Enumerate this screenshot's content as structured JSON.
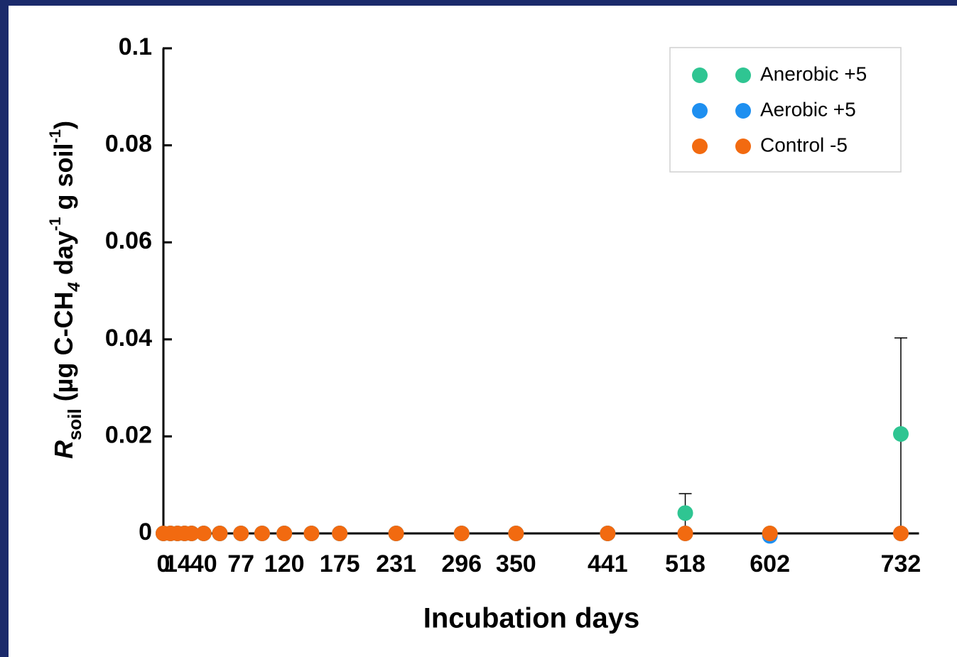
{
  "chart_data": {
    "type": "scatter",
    "ylabel_parts": [
      "R",
      "soil",
      " (µg C-CH",
      "4",
      " day",
      "-1",
      " g soil",
      "-1",
      ")"
    ],
    "xlabel": "Incubation days",
    "x": [
      0,
      7,
      14,
      21,
      28,
      40,
      56,
      77,
      98,
      120,
      147,
      175,
      231,
      296,
      350,
      441,
      518,
      602,
      732
    ],
    "series": [
      {
        "name": "Anerobic +5",
        "color": "#2fc592",
        "values": [
          0,
          0,
          0,
          0,
          0,
          0,
          0,
          0,
          0,
          0,
          0,
          0,
          0,
          0,
          0,
          0,
          0.0042,
          0,
          0.0205
        ],
        "errors": [
          null,
          null,
          null,
          null,
          null,
          null,
          null,
          null,
          null,
          null,
          null,
          null,
          null,
          null,
          null,
          null,
          0.004,
          null,
          0.0198
        ]
      },
      {
        "name": "Aerobic +5",
        "color": "#1e8ff0",
        "values": [
          0,
          0,
          0,
          0,
          0,
          0,
          0,
          0,
          0,
          0,
          0,
          0,
          0,
          0,
          0,
          0,
          0,
          -0.0005,
          0
        ]
      },
      {
        "name": "Control -5",
        "color": "#f26a10",
        "values": [
          0,
          0,
          0,
          0,
          0,
          0,
          0,
          0,
          0,
          0,
          0,
          0,
          0,
          0,
          0,
          0,
          0,
          0,
          0
        ]
      }
    ],
    "xlim": [
      0,
      750
    ],
    "xticks": [
      0,
      14,
      40,
      77,
      120,
      175,
      231,
      296,
      350,
      441,
      518,
      602,
      732
    ],
    "ylim": [
      0,
      0.1
    ],
    "yticks": [
      0,
      0.02,
      0.04,
      0.06,
      0.08,
      0.1
    ],
    "legend": "top-right"
  }
}
